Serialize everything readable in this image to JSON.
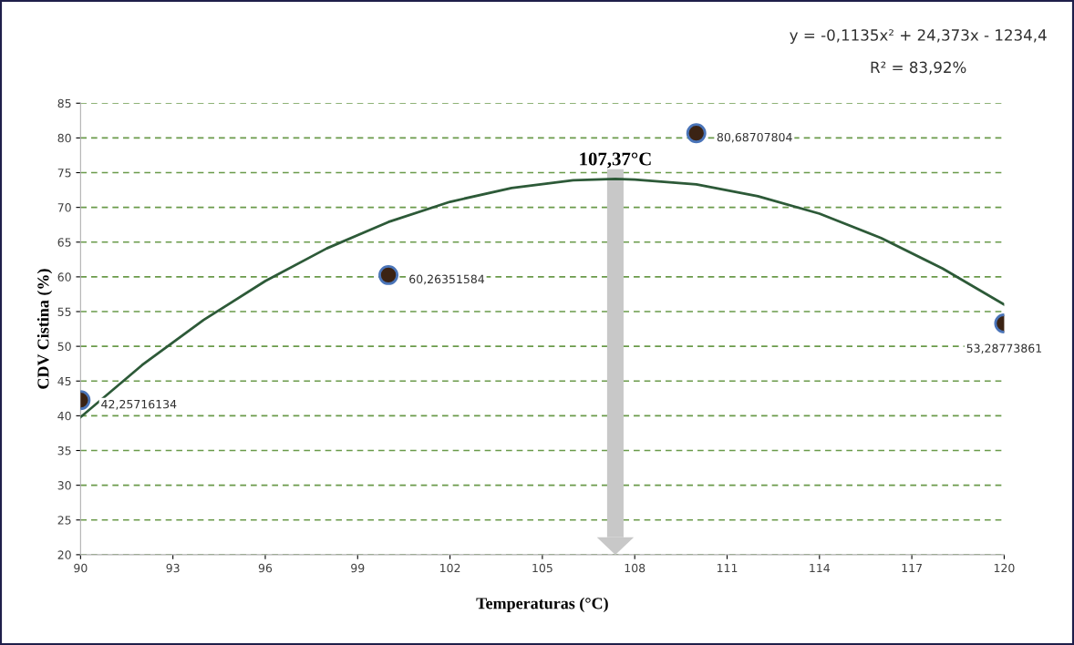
{
  "chart_data": {
    "type": "scatter",
    "xlabel": "Temperaturas (°C)",
    "ylabel": "CDV Cistina (%)",
    "xlim": [
      90,
      120
    ],
    "xticks": [
      90,
      93,
      96,
      99,
      102,
      105,
      108,
      111,
      114,
      117,
      120
    ],
    "ylim": [
      20,
      85
    ],
    "yticks": [
      20,
      25,
      30,
      35,
      40,
      45,
      50,
      55,
      60,
      65,
      70,
      75,
      80,
      85
    ],
    "grid": "y",
    "ref_lines": [
      {
        "axis": "x",
        "value": 107.37,
        "label": "107,37°C",
        "color": "#c8c8c8"
      }
    ],
    "series": [
      {
        "color": "#3b2314",
        "marker": "circle",
        "x": [
          90,
          100,
          110,
          120
        ],
        "values": [
          42.25716134,
          60.26351584,
          80.68707804,
          53.28773861
        ],
        "value_labels": [
          "42,25716134",
          "60,26351584",
          "80,68707804",
          "53,28773861"
        ]
      },
      {
        "type": "line",
        "color": "#2d5a38",
        "line_style": "solid",
        "marker": "none",
        "x": [
          90,
          92,
          94,
          96,
          98,
          100,
          102,
          104,
          106,
          107.37,
          108,
          110,
          112,
          114,
          116,
          118,
          120
        ],
        "values": [
          39.8,
          47.3,
          53.8,
          59.4,
          64.1,
          67.9,
          70.8,
          72.8,
          73.9,
          74.1,
          74.0,
          73.3,
          71.6,
          69.1,
          65.6,
          61.2,
          56.0
        ]
      }
    ],
    "annotations": [
      "y = -0,1135x² + 24,373x - 1234,4",
      "R² = 83,92%"
    ]
  }
}
